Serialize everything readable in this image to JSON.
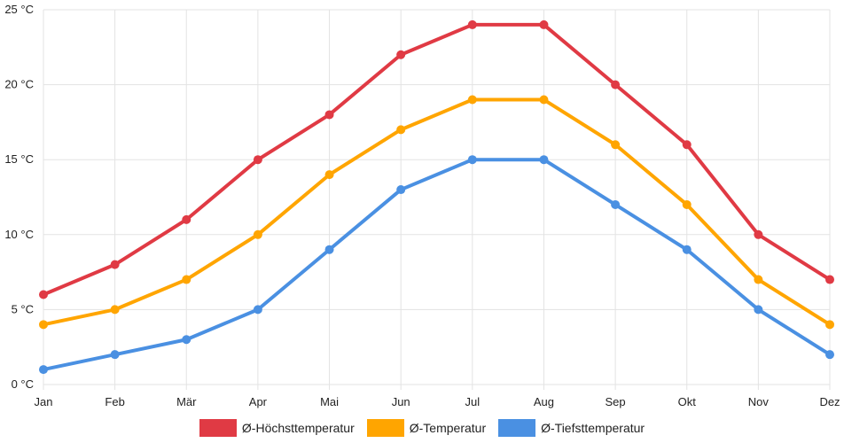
{
  "chart_data": {
    "type": "line",
    "title": "",
    "xlabel": "",
    "ylabel": "",
    "unit_suffix": " °C",
    "ylim": [
      0,
      25
    ],
    "ytick_step": 5,
    "grid": true,
    "legend_position": "bottom",
    "categories": [
      "Jan",
      "Feb",
      "Mär",
      "Apr",
      "Mai",
      "Jun",
      "Jul",
      "Aug",
      "Sep",
      "Okt",
      "Nov",
      "Dez"
    ],
    "series": [
      {
        "name": "Ø-Höchsttemperatur",
        "color": "#e03a44",
        "values": [
          6,
          8,
          11,
          15,
          18,
          22,
          24,
          24,
          20,
          16,
          10,
          7
        ]
      },
      {
        "name": "Ø-Temperatur",
        "color": "#ffa500",
        "values": [
          4,
          5,
          7,
          10,
          14,
          17,
          19,
          19,
          16,
          12,
          7,
          4
        ]
      },
      {
        "name": "Ø-Tiefsttemperatur",
        "color": "#4a90e2",
        "values": [
          1,
          2,
          3,
          5,
          9,
          13,
          15,
          15,
          12,
          9,
          5,
          2
        ]
      }
    ]
  }
}
